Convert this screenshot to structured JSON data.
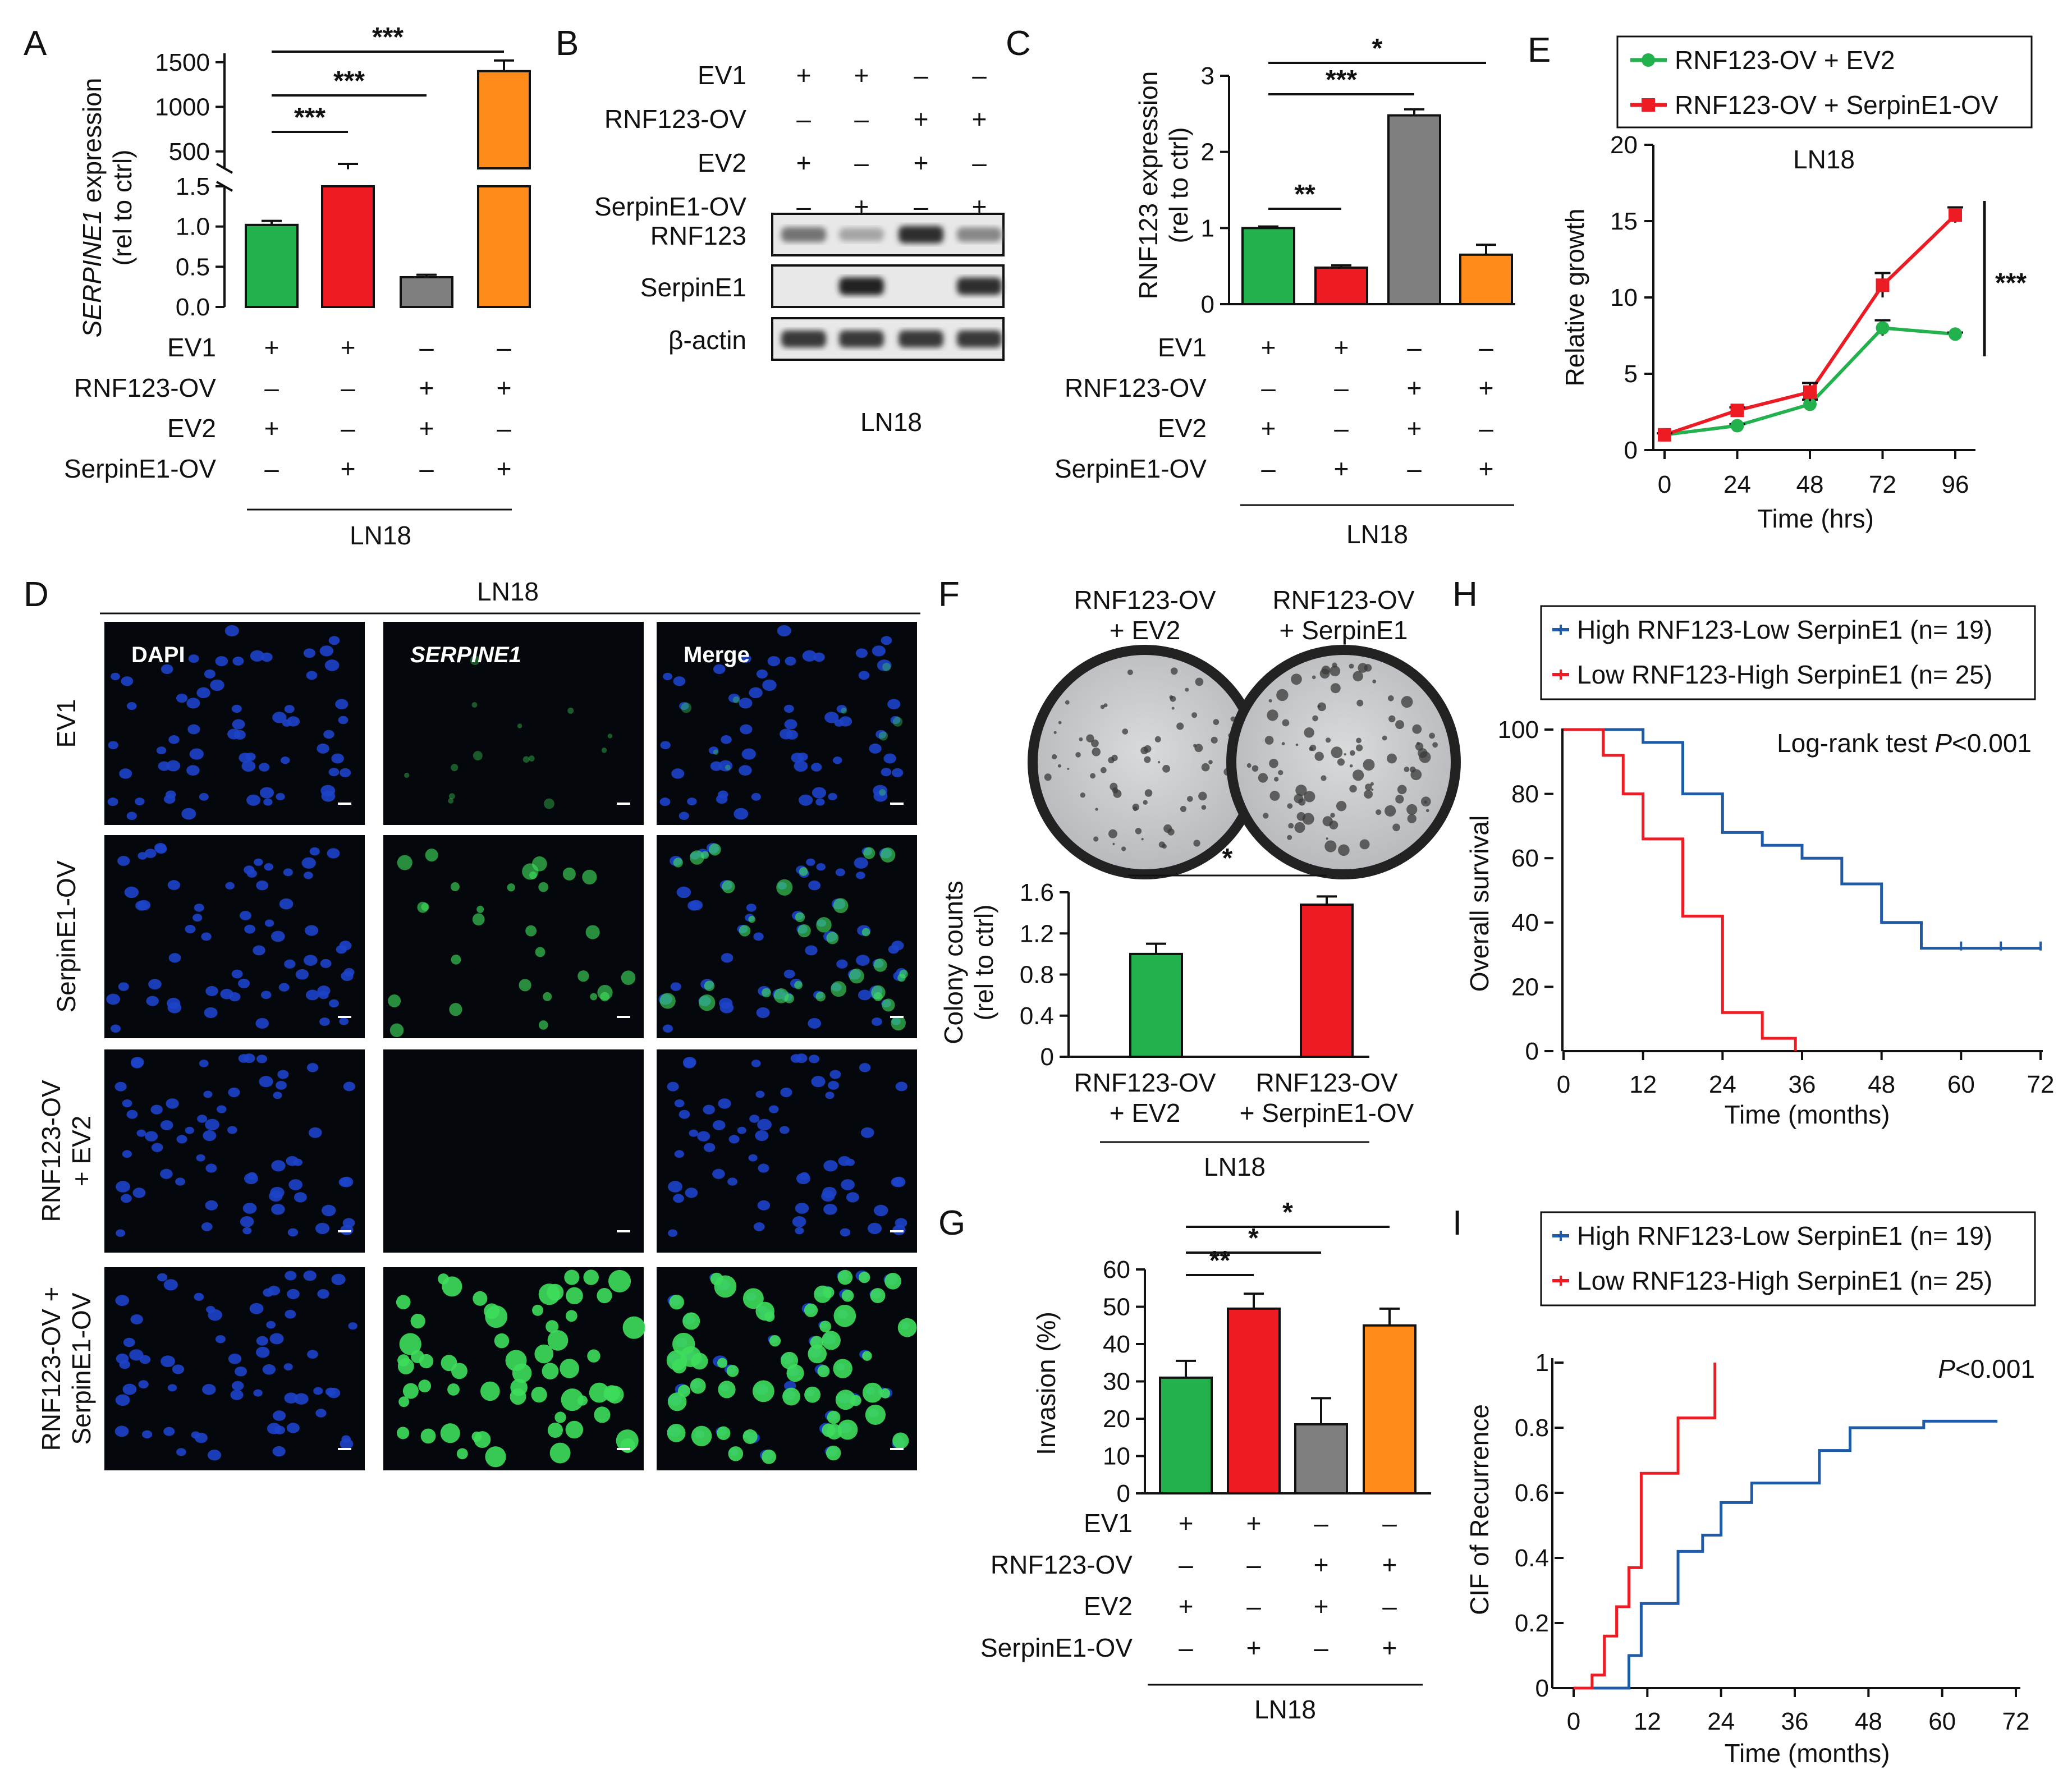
{
  "colors": {
    "green": "#22b14c",
    "red": "#ed1c24",
    "gray": "#7f7f7f",
    "orange": "#ff8c1a",
    "blue": "#1f5aa6",
    "microscopy_bg": "#04080d",
    "nuclei": "#1d43c9",
    "serpine_green": "#3ddc5b"
  },
  "condition_rows": [
    {
      "label": "EV1",
      "signs": [
        "+",
        "+",
        "-",
        "-"
      ]
    },
    {
      "label": "RNF123-OV",
      "signs": [
        "-",
        "-",
        "+",
        "+"
      ]
    },
    {
      "label": "EV2",
      "signs": [
        "+",
        "-",
        "+",
        "-"
      ]
    },
    {
      "label": "SerpinE1-OV",
      "signs": [
        "-",
        "+",
        "-",
        "+"
      ]
    }
  ],
  "chart_data": [
    {
      "panel": "A",
      "type": "bar",
      "cell_line": "LN18",
      "ylabel_italic": "SERPINE1",
      "ylabel_rest": " expression",
      "ylabel2": "(rel to ctrl)",
      "broken_axis": true,
      "lower_ticks": [
        "0.0",
        "0.5",
        "1.0",
        "1.5"
      ],
      "upper_ticks": [
        "500",
        "1000",
        "1500"
      ],
      "values": [
        1.02,
        300,
        0.37,
        1400
      ],
      "errors": [
        0.05,
        60,
        0.03,
        120
      ],
      "colors": [
        "green",
        "red",
        "gray",
        "orange"
      ],
      "significance": [
        {
          "from": 1,
          "to": 2,
          "label": "***"
        },
        {
          "from": 1,
          "to": 3,
          "label": "***"
        },
        {
          "from": 1,
          "to": 4,
          "label": "***"
        }
      ]
    },
    {
      "panel": "B",
      "type": "western_blot",
      "cell_line": "LN18",
      "bands": [
        {
          "name": "RNF123",
          "intensities": [
            0.55,
            0.3,
            0.9,
            0.45
          ]
        },
        {
          "name": "SerpinE1",
          "intensities": [
            0.0,
            0.95,
            0.0,
            0.9
          ]
        },
        {
          "name": "β-actin",
          "intensities": [
            0.85,
            0.85,
            0.85,
            0.85
          ]
        }
      ]
    },
    {
      "panel": "C",
      "type": "bar",
      "cell_line": "LN18",
      "ylabel": "RNF123 expression",
      "ylabel2": "(rel to ctrl)",
      "ylim": [
        0,
        3
      ],
      "ticks": [
        "0",
        "1",
        "2",
        "3"
      ],
      "values": [
        1.0,
        0.48,
        2.48,
        0.65
      ],
      "errors": [
        0.02,
        0.03,
        0.08,
        0.13
      ],
      "colors": [
        "green",
        "red",
        "gray",
        "orange"
      ],
      "significance": [
        {
          "from": 1,
          "to": 2,
          "label": "**"
        },
        {
          "from": 1,
          "to": 3,
          "label": "***"
        },
        {
          "from": 1,
          "to": 4,
          "label": "*"
        }
      ]
    },
    {
      "panel": "E",
      "type": "line",
      "title": "LN18",
      "xlabel": "Time (hrs)",
      "ylabel": "Relative growth",
      "x": [
        0,
        24,
        48,
        72,
        96
      ],
      "ylim": [
        0,
        20
      ],
      "xticks": [
        "0",
        "24",
        "48",
        "72",
        "96"
      ],
      "yticks": [
        "0",
        "5",
        "10",
        "15",
        "20"
      ],
      "series": [
        {
          "name": "RNF123-OV + EV2",
          "color": "green",
          "values": [
            1.0,
            1.6,
            3.0,
            8.0,
            7.6
          ],
          "errors": [
            0.1,
            0.1,
            0.3,
            0.5,
            0.1
          ]
        },
        {
          "name": "RNF123-OV + SerpinE1-OV",
          "color": "red",
          "values": [
            1.0,
            2.6,
            3.8,
            10.8,
            15.4
          ],
          "errors": [
            0.1,
            0.2,
            0.6,
            0.8,
            0.5
          ]
        }
      ],
      "significance": "***"
    },
    {
      "panel": "F",
      "type": "bar",
      "cell_line": "LN18",
      "ylabel": "Colony counts",
      "ylabel2": "(rel to ctrl)",
      "ylim": [
        0,
        1.6
      ],
      "ticks": [
        "0",
        "0.4",
        "0.8",
        "1.2",
        "1.6"
      ],
      "categories": [
        [
          "RNF123-OV",
          "+ EV2"
        ],
        [
          "RNF123-OV",
          "+ SerpinE1-OV"
        ]
      ],
      "values": [
        1.0,
        1.48
      ],
      "errors": [
        0.1,
        0.08
      ],
      "colors": [
        "green",
        "red"
      ],
      "plate_titles": [
        [
          "RNF123-OV",
          "+ EV2"
        ],
        [
          "RNF123-OV",
          "+ SerpinE1"
        ]
      ],
      "significance": "*"
    },
    {
      "panel": "G",
      "type": "bar",
      "cell_line": "LN18",
      "ylabel": "Invasion (%)",
      "ylim": [
        0,
        60
      ],
      "ticks": [
        "0",
        "10",
        "20",
        "30",
        "40",
        "50",
        "60"
      ],
      "values": [
        31,
        49.5,
        18.5,
        45
      ],
      "errors": [
        4.5,
        4,
        7,
        4.5
      ],
      "colors": [
        "green",
        "red",
        "gray",
        "orange"
      ],
      "significance": [
        {
          "from": 1,
          "to": 2,
          "label": "**"
        },
        {
          "from": 1,
          "to": 3,
          "label": "*"
        },
        {
          "from": 1,
          "to": 4,
          "label": "*"
        }
      ]
    },
    {
      "panel": "H",
      "type": "line",
      "step": true,
      "xlabel": "Time (months)",
      "ylabel": "Overall survival",
      "xlim": [
        0,
        72
      ],
      "ylim": [
        0,
        100
      ],
      "xticks": [
        "0",
        "12",
        "24",
        "36",
        "48",
        "60",
        "72"
      ],
      "yticks": [
        "0",
        "20",
        "40",
        "60",
        "80",
        "100"
      ],
      "annotation": "Log-rank test ",
      "annotation_p": "P",
      "annotation_rest": "<0.001",
      "series": [
        {
          "name": "High RNF123-Low SerpinE1 (n= 19)",
          "color": "blue",
          "x": [
            0,
            12,
            18,
            24,
            30,
            36,
            42,
            48,
            54,
            72
          ],
          "y": [
            100,
            96,
            80,
            68,
            64,
            60,
            52,
            40,
            32,
            32
          ],
          "censor_x": [
            60,
            66,
            72
          ]
        },
        {
          "name": "Low RNF123-High SerpinE1 (n= 25)",
          "color": "red",
          "x": [
            0,
            6,
            9,
            12,
            18,
            24,
            30,
            35
          ],
          "y": [
            100,
            92,
            80,
            66,
            42,
            12,
            4,
            0
          ],
          "censor_x": []
        }
      ]
    },
    {
      "panel": "I",
      "type": "line",
      "step": true,
      "xlabel": "Time (months)",
      "ylabel": "CIF of Recurrence",
      "xlim": [
        0,
        72
      ],
      "ylim": [
        0,
        1
      ],
      "xticks": [
        "0",
        "12",
        "24",
        "36",
        "48",
        "60",
        "72"
      ],
      "yticks": [
        "0",
        "0.2",
        "0.4",
        "0.6",
        "0.8",
        "1"
      ],
      "annotation_p": "P",
      "annotation_rest": "<0.001",
      "series": [
        {
          "name": "High RNF123-Low SerpinE1 (n= 19)",
          "color": "blue",
          "x": [
            0,
            9,
            11,
            17,
            21,
            24,
            29,
            40,
            45,
            57,
            69
          ],
          "y": [
            0,
            0.1,
            0.26,
            0.42,
            0.47,
            0.57,
            0.63,
            0.73,
            0.8,
            0.82,
            0.82
          ]
        },
        {
          "name": "Low RNF123-High SerpinE1 (n= 25)",
          "color": "red",
          "x": [
            0,
            3,
            5,
            7,
            9,
            11,
            17,
            23,
            23
          ],
          "y": [
            0,
            0.04,
            0.16,
            0.25,
            0.37,
            0.66,
            0.83,
            0.83,
            1.0
          ]
        }
      ]
    }
  ],
  "panel_d": {
    "title": "LN18",
    "columns": [
      "DAPI",
      "SERPINE1",
      "Merge"
    ],
    "rows": [
      [
        "EV1"
      ],
      [
        "SerpinE1-OV"
      ],
      [
        "RNF123-OV",
        "+ EV2"
      ],
      [
        "RNF123-OV +",
        "SerpinE1-OV"
      ]
    ],
    "green_level": [
      0.2,
      0.55,
      0.02,
      0.95
    ]
  },
  "panel_letters": [
    "A",
    "B",
    "C",
    "D",
    "E",
    "F",
    "G",
    "H",
    "I"
  ],
  "cell_line": "LN18"
}
